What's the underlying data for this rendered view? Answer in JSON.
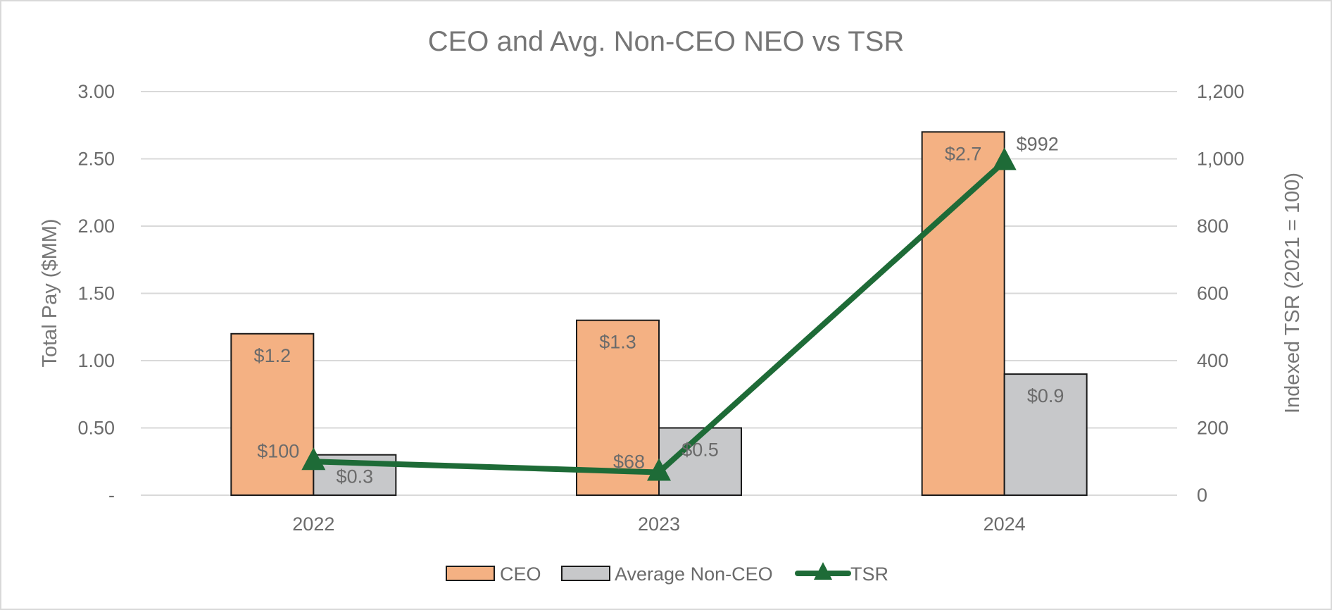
{
  "chart_data": {
    "type": "bar",
    "title": "CEO and Avg. Non-CEO NEO vs TSR",
    "categories": [
      "2022",
      "2023",
      "2024"
    ],
    "series": [
      {
        "name": "CEO",
        "kind": "bar",
        "axis": "left",
        "values": [
          1.2,
          1.3,
          2.7
        ],
        "labels": [
          "$1.2",
          "$1.3",
          "$2.7"
        ],
        "color": "#f4b183"
      },
      {
        "name": "Average Non-CEO",
        "kind": "bar",
        "axis": "left",
        "values": [
          0.3,
          0.5,
          0.9
        ],
        "labels": [
          "$0.3",
          "$0.5",
          "$0.9"
        ],
        "color": "#c7c8ca"
      },
      {
        "name": "TSR",
        "kind": "line",
        "marker": "triangle",
        "axis": "right",
        "values": [
          100,
          68,
          992
        ],
        "labels": [
          "$100",
          "$68",
          "$992"
        ],
        "color": "#1e6b37"
      }
    ],
    "ylabel": "Total Pay ($MM)",
    "y2label": "Indexed TSR (2021 = 100)",
    "ylim": [
      0,
      3.0
    ],
    "y2lim": [
      0,
      1200
    ],
    "yticks": [
      "-",
      "0.50",
      "1.00",
      "1.50",
      "2.00",
      "2.50",
      "3.00"
    ],
    "y2ticks": [
      "0",
      "200",
      "400",
      "600",
      "800",
      "1,000",
      "1,200"
    ],
    "grid": true,
    "legend": "bottom",
    "gridline_color": "#d9d9d9",
    "bar_outline_color": "#1a1a1a"
  }
}
